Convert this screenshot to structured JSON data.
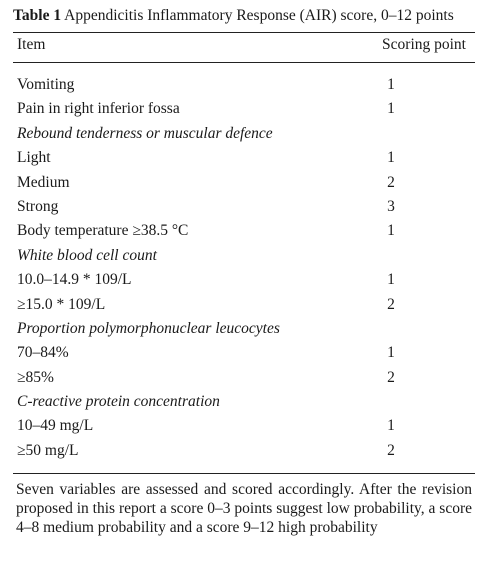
{
  "table": {
    "label": "Table 1",
    "title": "Appendicitis Inflammatory Response (AIR) score, 0–12 points",
    "columns": [
      "Item",
      "Scoring point"
    ],
    "rows": [
      {
        "item": "Vomiting",
        "points": "1",
        "section": false
      },
      {
        "item": "Pain in right inferior fossa",
        "points": "1",
        "section": false
      },
      {
        "item": "Rebound tenderness or muscular defence",
        "points": "",
        "section": true
      },
      {
        "item": "Light",
        "points": "1",
        "section": false
      },
      {
        "item": "Medium",
        "points": "2",
        "section": false
      },
      {
        "item": "Strong",
        "points": "3",
        "section": false
      },
      {
        "item": "Body temperature ≥38.5 °C",
        "points": "1",
        "section": false
      },
      {
        "item": "White blood cell count",
        "points": "",
        "section": true
      },
      {
        "item": "10.0–14.9 * 109/L",
        "points": "1",
        "section": false
      },
      {
        "item": "≥15.0 * 109/L",
        "points": "2",
        "section": false
      },
      {
        "item": "Proportion polymorphonuclear leucocytes",
        "points": "",
        "section": true
      },
      {
        "item": "70–84%",
        "points": "1",
        "section": false
      },
      {
        "item": "≥85%",
        "points": "2",
        "section": false
      },
      {
        "item": "C-reactive protein concentration",
        "points": "",
        "section": true
      },
      {
        "item": "10–49 mg/L",
        "points": "1",
        "section": false
      },
      {
        "item": "≥50 mg/L",
        "points": "2",
        "section": false
      }
    ],
    "footnote": "Seven variables are assessed and scored accordingly. After the revision proposed in this report a score 0–3 points suggest low probability, a score 4–8 medium probability and a score 9–12 high probability"
  }
}
